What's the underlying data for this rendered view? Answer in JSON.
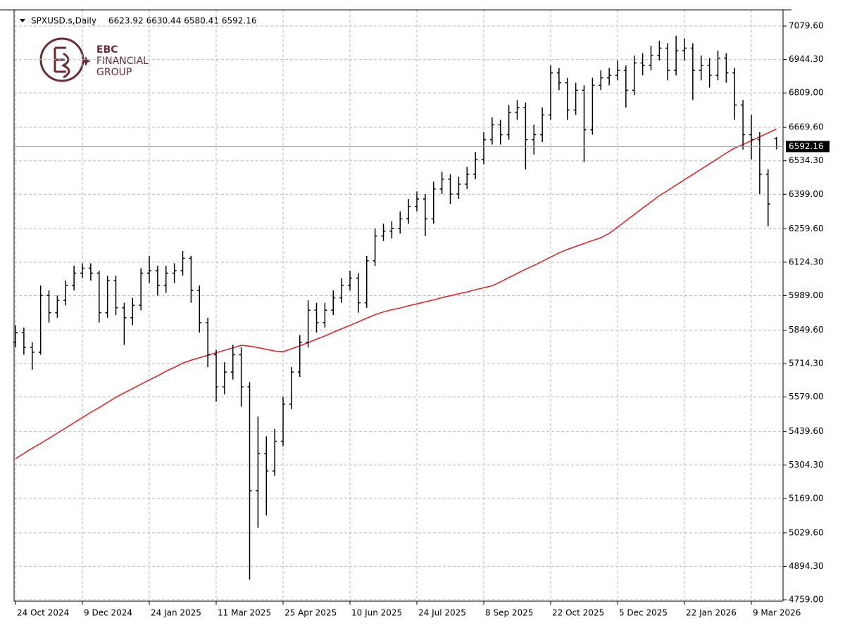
{
  "logo": [
    "EBC",
    "FINANCIAL",
    "GROUP"
  ],
  "chart_data": {
    "type": "ohlc",
    "title": "SPXUSD.s,Daily",
    "color": "#000000",
    "grid": true,
    "xlim": [
      -0.17,
      91.79
    ],
    "ylim": [
      4753.3,
      7145.0
    ],
    "xticks": [
      {
        "value": 0,
        "label": "24 Oct 2024"
      },
      {
        "value": 8,
        "label": "9 Dec 2024"
      },
      {
        "value": 16,
        "label": "24 Jan 2025"
      },
      {
        "value": 24,
        "label": "11 Mar 2025"
      },
      {
        "value": 32,
        "label": "25 Apr 2025"
      },
      {
        "value": 40,
        "label": "10 Jun 2025"
      },
      {
        "value": 48,
        "label": "24 Jul 2025"
      },
      {
        "value": 56,
        "label": "8 Sep 2025"
      },
      {
        "value": 64,
        "label": "22 Oct 2025"
      },
      {
        "value": 72,
        "label": "5 Dec 2025"
      },
      {
        "value": 80,
        "label": "22 Jan 2026"
      },
      {
        "value": 88,
        "label": "9 Mar 2026"
      }
    ],
    "yticks": [
      {
        "value": 7079.6,
        "label": "7079.60"
      },
      {
        "value": 6944.3,
        "label": "6944.30"
      },
      {
        "value": 6809,
        "label": "6809.00"
      },
      {
        "value": 6669.6,
        "label": "6669.60"
      },
      {
        "value": 6534.3,
        "label": "6534.30"
      },
      {
        "value": 6399,
        "label": "6399.00"
      },
      {
        "value": 6259.6,
        "label": "6259.60"
      },
      {
        "value": 6124.3,
        "label": "6124.30"
      },
      {
        "value": 5989,
        "label": "5989.00"
      },
      {
        "value": 5849.6,
        "label": "5849.60"
      },
      {
        "value": 5714.3,
        "label": "5714.30"
      },
      {
        "value": 5579,
        "label": "5579.00"
      },
      {
        "value": 5439.6,
        "label": "5439.60"
      },
      {
        "value": 5304.3,
        "label": "5304.30"
      },
      {
        "value": 5169,
        "label": "5169.00"
      },
      {
        "value": 5029.6,
        "label": "5029.60"
      },
      {
        "value": 4894.3,
        "label": "4894.30"
      },
      {
        "value": 4759,
        "label": "4759.00"
      }
    ],
    "ohlc": {
      "open": [
        5800,
        5840,
        5780,
        5760,
        5990,
        5920,
        5970,
        6030,
        6080,
        6100,
        6080,
        5920,
        6050,
        5940,
        5900,
        5950,
        6080,
        6090,
        6030,
        6080,
        6090,
        6140,
        6010,
        5880,
        5750,
        5620,
        5680,
        5750,
        5620,
        5200,
        5350,
        5280,
        5400,
        5550,
        5680,
        5800,
        5930,
        5880,
        5930,
        5980,
        6030,
        6060,
        5960,
        6130,
        6230,
        6250,
        6260,
        6300,
        6350,
        6380,
        6300,
        6420,
        6460,
        6400,
        6440,
        6480,
        6540,
        6620,
        6680,
        6640,
        6730,
        6750,
        6620,
        6640,
        6720,
        6890,
        6850,
        6740,
        6820,
        6660,
        6840,
        6870,
        6880,
        6900,
        6820,
        6930,
        6920,
        6960,
        6990,
        6900,
        6980,
        6990,
        6900,
        6920,
        6880,
        6950,
        6890,
        6760,
        6640,
        6620,
        6480,
        6623.92
      ],
      "high": [
        5870,
        5860,
        5800,
        6030,
        6010,
        5990,
        6050,
        6110,
        6120,
        6120,
        6090,
        6070,
        6070,
        5960,
        5980,
        6100,
        6150,
        6110,
        6110,
        6120,
        6170,
        6150,
        6030,
        5900,
        5770,
        5720,
        5790,
        5780,
        5640,
        5500,
        5420,
        5450,
        5580,
        5700,
        5830,
        5970,
        5960,
        5960,
        6010,
        6060,
        6090,
        6080,
        6150,
        6260,
        6280,
        6290,
        6330,
        6380,
        6410,
        6400,
        6450,
        6490,
        6480,
        6470,
        6510,
        6570,
        6650,
        6710,
        6700,
        6760,
        6780,
        6770,
        6680,
        6750,
        6920,
        6910,
        6870,
        6850,
        6840,
        6870,
        6900,
        6910,
        6940,
        6920,
        6960,
        6970,
        7000,
        7020,
        7010,
        7040,
        7030,
        7010,
        6960,
        6950,
        6980,
        6970,
        6910,
        6780,
        6720,
        6650,
        6500,
        6630.44
      ],
      "low": [
        5780,
        5750,
        5690,
        5750,
        5880,
        5900,
        5950,
        6010,
        6060,
        6050,
        5880,
        5900,
        5910,
        5790,
        5870,
        5930,
        6040,
        5990,
        6000,
        6040,
        6070,
        5960,
        5840,
        5700,
        5560,
        5590,
        5650,
        5540,
        4840,
        5050,
        5100,
        5260,
        5380,
        5530,
        5660,
        5780,
        5840,
        5860,
        5910,
        5960,
        6010,
        5920,
        5940,
        6110,
        6210,
        6220,
        6240,
        6280,
        6330,
        6230,
        6280,
        6400,
        6360,
        6380,
        6420,
        6460,
        6520,
        6600,
        6600,
        6620,
        6700,
        6500,
        6560,
        6610,
        6700,
        6820,
        6700,
        6720,
        6530,
        6640,
        6820,
        6840,
        6860,
        6750,
        6800,
        6880,
        6900,
        6940,
        6860,
        6880,
        6940,
        6780,
        6860,
        6830,
        6860,
        6850,
        6700,
        6580,
        6540,
        6400,
        6270,
        6580.41
      ],
      "close": [
        5840,
        5780,
        5760,
        5990,
        5920,
        5970,
        6030,
        6080,
        6100,
        6080,
        5920,
        6050,
        5940,
        5900,
        5950,
        6080,
        6090,
        6030,
        6080,
        6090,
        6140,
        6010,
        5880,
        5750,
        5620,
        5680,
        5750,
        5620,
        5200,
        5350,
        5280,
        5400,
        5550,
        5680,
        5800,
        5930,
        5880,
        5930,
        5980,
        6030,
        6060,
        5960,
        6130,
        6230,
        6250,
        6260,
        6300,
        6350,
        6380,
        6300,
        6420,
        6460,
        6400,
        6440,
        6480,
        6540,
        6620,
        6680,
        6640,
        6730,
        6750,
        6620,
        6640,
        6720,
        6890,
        6850,
        6740,
        6820,
        6660,
        6840,
        6870,
        6880,
        6900,
        6820,
        6930,
        6920,
        6960,
        6990,
        6900,
        6980,
        6990,
        6900,
        6920,
        6880,
        6950,
        6890,
        6760,
        6640,
        6620,
        6480,
        6360,
        6592.16
      ]
    },
    "ma": {
      "color": "#e8191d",
      "values": [
        5330,
        5351,
        5372,
        5391,
        5412,
        5433,
        5454,
        5475,
        5496,
        5517,
        5536,
        5557,
        5578,
        5596,
        5613,
        5631,
        5648,
        5665,
        5683,
        5699,
        5716,
        5728,
        5738,
        5748,
        5758,
        5768,
        5778,
        5788,
        5785,
        5779,
        5772,
        5765,
        5762,
        5774,
        5786,
        5799,
        5813,
        5826,
        5841,
        5855,
        5869,
        5883,
        5898,
        5912,
        5923,
        5932,
        5939,
        5948,
        5956,
        5964,
        5972,
        5981,
        5989,
        5997,
        6004,
        6013,
        6021,
        6029,
        6045,
        6062,
        6079,
        6096,
        6111,
        6128,
        6145,
        6162,
        6176,
        6188,
        6200,
        6212,
        6223,
        6241,
        6266,
        6292,
        6317,
        6343,
        6368,
        6394,
        6414,
        6436,
        6458,
        6479,
        6501,
        6522,
        6544,
        6566,
        6586,
        6600,
        6616,
        6632,
        6647,
        6663
      ]
    }
  }
}
